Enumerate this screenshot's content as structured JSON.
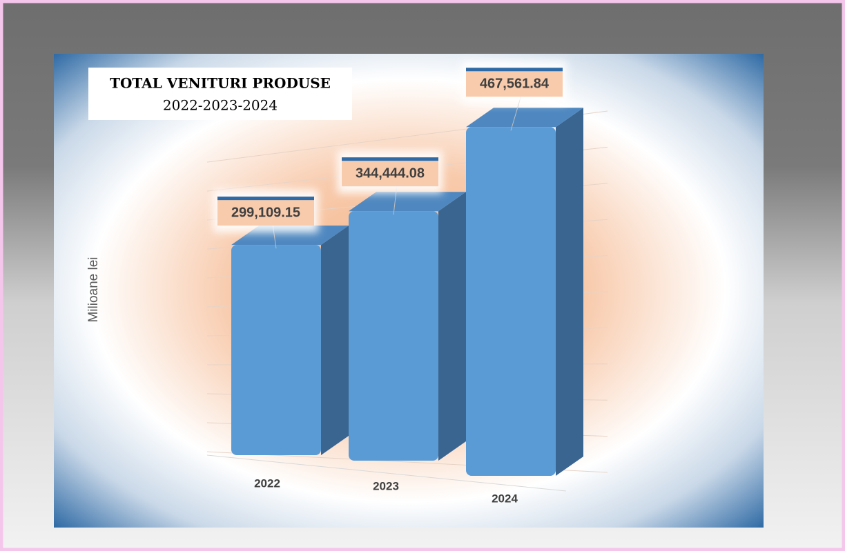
{
  "chart_data": {
    "type": "bar3d",
    "title": "TOTAL VENITURI PRODUSE",
    "subtitle": "2022-2023-2024",
    "y_label": "Milioane lei",
    "categories": [
      "2022",
      "2023",
      "2024"
    ],
    "values": [
      299109.15,
      344444.08,
      467561.84
    ],
    "value_labels": [
      "299,109.15",
      "344,444.08",
      "467,561.84"
    ],
    "color": "#5b9bd5",
    "ylim": [
      0,
      500000
    ],
    "yticks": [
      0,
      50000,
      100000,
      150000,
      200000,
      250000,
      300000,
      350000,
      400000,
      450000,
      500000
    ],
    "grid": true
  }
}
